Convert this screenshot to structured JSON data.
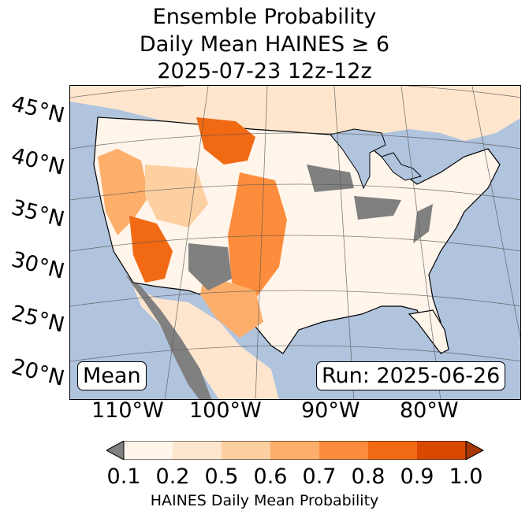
{
  "title": {
    "line1": "Ensemble Probability",
    "line2": "Daily Mean HAINES ≥ 6",
    "line3": "2025-07-23 12z-12z"
  },
  "map": {
    "lat_labels": [
      "45°N",
      "40°N",
      "35°N",
      "30°N",
      "25°N",
      "20°N"
    ],
    "lon_labels": [
      "110°W",
      "100°W",
      "90°W",
      "80°W"
    ],
    "stat_label": "Mean",
    "run_label": "Run: 2025-06-26",
    "colors": {
      "ocean": "#b0c4de",
      "land": "#ffffff",
      "below_min": "#808080"
    }
  },
  "colorbar": {
    "ticks": [
      "0.1",
      "0.2",
      "0.5",
      "0.6",
      "0.7",
      "0.8",
      "0.9",
      "1.0"
    ],
    "colors": [
      "#fff5eb",
      "#fee6ce",
      "#fdd0a2",
      "#fdae6b",
      "#fd8d3c",
      "#f16913",
      "#d94801",
      "#a63603"
    ],
    "under_color": "#808080",
    "label": "HAINES Daily Mean Probability"
  }
}
